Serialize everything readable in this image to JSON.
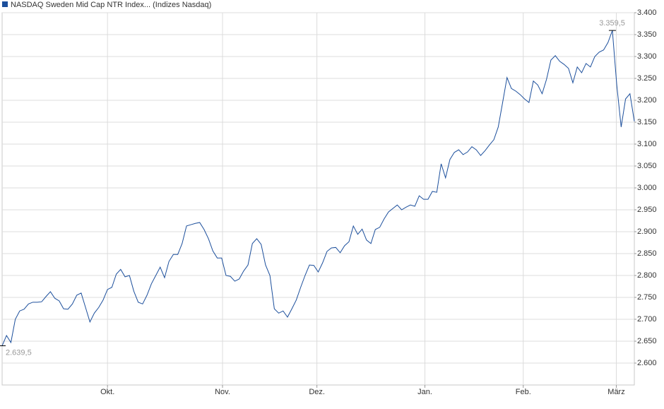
{
  "chart_data": {
    "type": "line",
    "x": [
      0,
      1,
      2,
      3,
      4,
      5,
      6,
      7,
      8,
      9,
      10,
      11,
      12,
      13,
      14,
      15,
      16,
      17,
      18,
      19,
      20,
      21,
      22,
      23,
      24,
      25,
      26,
      27,
      28,
      29,
      30,
      31,
      32,
      33,
      34,
      35,
      36,
      37,
      38,
      39,
      40,
      41,
      42,
      43,
      44,
      45,
      46,
      47,
      48,
      49,
      50,
      51,
      52,
      53,
      54,
      55,
      56,
      57,
      58,
      59,
      60,
      61,
      62,
      63,
      64,
      65,
      66,
      67,
      68,
      69,
      70,
      71,
      72,
      73,
      74,
      75,
      76,
      77,
      78,
      79,
      80,
      81,
      82,
      83,
      84,
      85,
      86,
      87,
      88,
      89,
      90,
      91,
      92,
      93,
      94,
      95,
      96,
      97,
      98,
      99,
      100,
      101,
      102,
      103,
      104,
      105,
      106,
      107,
      108,
      109,
      110,
      111,
      112,
      113,
      114,
      115,
      116,
      117,
      118,
      119,
      120,
      121,
      122,
      123,
      124,
      125,
      126,
      127,
      128,
      129,
      130,
      131,
      132,
      133,
      134,
      135,
      136,
      137,
      138,
      139,
      140,
      141,
      142,
      143,
      144
    ],
    "series": [
      {
        "name": "NASDAQ Sweden Mid Cap NTR Index... (Indizes Nasdaq)",
        "color": "#1c4f9c",
        "values": [
          2639.5,
          2663,
          2647,
          2700,
          2719,
          2723,
          2735,
          2739,
          2739,
          2740,
          2752,
          2763,
          2748,
          2742,
          2724,
          2723,
          2735,
          2755,
          2760,
          2727,
          2694,
          2714,
          2727,
          2744,
          2768,
          2773,
          2803,
          2814,
          2797,
          2800,
          2764,
          2739,
          2735,
          2755,
          2781,
          2800,
          2819,
          2795,
          2832,
          2848,
          2848,
          2873,
          2913,
          2916,
          2919,
          2921,
          2905,
          2884,
          2856,
          2840,
          2840,
          2800,
          2798,
          2787,
          2792,
          2810,
          2824,
          2873,
          2884,
          2871,
          2824,
          2800,
          2724,
          2714,
          2719,
          2705,
          2724,
          2744,
          2773,
          2800,
          2824,
          2823,
          2808,
          2829,
          2855,
          2863,
          2864,
          2852,
          2868,
          2877,
          2913,
          2894,
          2906,
          2881,
          2873,
          2905,
          2910,
          2929,
          2945,
          2953,
          2961,
          2950,
          2956,
          2961,
          2958,
          2982,
          2974,
          2974,
          2992,
          2990,
          3055,
          3023,
          3065,
          3081,
          3087,
          3076,
          3082,
          3094,
          3087,
          3074,
          3085,
          3098,
          3110,
          3139,
          3195,
          3252,
          3227,
          3221,
          3213,
          3203,
          3195,
          3244,
          3235,
          3215,
          3248,
          3292,
          3302,
          3289,
          3282,
          3273,
          3240,
          3276,
          3263,
          3284,
          3276,
          3300,
          3310,
          3315,
          3332,
          3359.5,
          3235,
          3139,
          3203,
          3215,
          3152
        ]
      }
    ],
    "xlim": [
      0,
      144
    ],
    "xticks": [
      {
        "value": 24,
        "label": "Okt."
      },
      {
        "value": 50.2,
        "label": "Nov."
      },
      {
        "value": 71.7,
        "label": "Dez."
      },
      {
        "value": 96.3,
        "label": "Jan."
      },
      {
        "value": 118.7,
        "label": "Feb."
      },
      {
        "value": 139.9,
        "label": "März"
      }
    ],
    "ylim": [
      2550,
      3400
    ],
    "yticks": [
      {
        "value": 2600,
        "label": "2.600"
      },
      {
        "value": 2650,
        "label": "2.650"
      },
      {
        "value": 2700,
        "label": "2.700"
      },
      {
        "value": 2750,
        "label": "2.750"
      },
      {
        "value": 2800,
        "label": "2.800"
      },
      {
        "value": 2850,
        "label": "2.850"
      },
      {
        "value": 2900,
        "label": "2.900"
      },
      {
        "value": 2950,
        "label": "2.950"
      },
      {
        "value": 3000,
        "label": "3.000"
      },
      {
        "value": 3050,
        "label": "3.050"
      },
      {
        "value": 3100,
        "label": "3.100"
      },
      {
        "value": 3150,
        "label": "3.150"
      },
      {
        "value": 3200,
        "label": "3.200"
      },
      {
        "value": 3250,
        "label": "3.250"
      },
      {
        "value": 3300,
        "label": "3.300"
      },
      {
        "value": 3350,
        "label": "3.350"
      },
      {
        "value": 3400,
        "label": "3.400"
      }
    ],
    "grid": true,
    "legend": "top-left",
    "annotations": [
      {
        "x": 139,
        "y": 3359.5,
        "label": "3.359,5"
      },
      {
        "x": 0,
        "y": 2639.5,
        "label": "2.639,5"
      }
    ]
  }
}
